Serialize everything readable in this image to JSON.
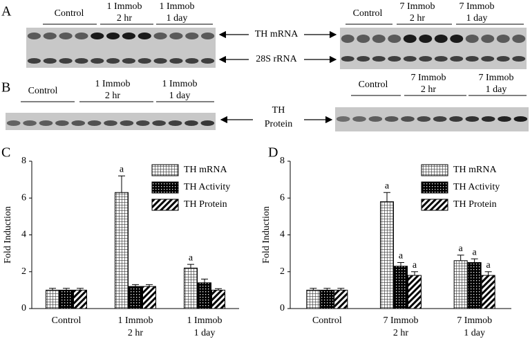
{
  "panels": [
    "A",
    "B",
    "C",
    "D"
  ],
  "blot_a": {
    "left_groups": [
      [
        "Control"
      ],
      [
        "1 Immob",
        "2 hr"
      ],
      [
        "1 Immob",
        "1 day"
      ]
    ],
    "right_groups": [
      [
        "Control"
      ],
      [
        "7 Immob",
        "2 hr"
      ],
      [
        "7 Immob",
        "1 day"
      ]
    ],
    "arrow_labels": [
      "TH mRNA",
      "28S rRNA"
    ]
  },
  "blot_b": {
    "left_groups": [
      [
        "Control"
      ],
      [
        "1 Immob",
        "2 hr"
      ],
      [
        "1 Immob",
        "1 day"
      ]
    ],
    "right_groups": [
      [
        "Control"
      ],
      [
        "7 Immob",
        "2 hr"
      ],
      [
        "7 Immob",
        "1 day"
      ]
    ],
    "arrow_label": [
      "TH",
      "Protein"
    ]
  },
  "chart_data": [
    {
      "type": "bar",
      "ylabel": "Fold Induction",
      "categories": [
        [
          "Control"
        ],
        [
          "1 Immob",
          "2 hr"
        ],
        [
          "1 Immob",
          "1 day"
        ]
      ],
      "ylim": [
        0,
        8
      ],
      "yticks": [
        0,
        2,
        4,
        6,
        8
      ],
      "legend": "upper right",
      "series": [
        {
          "name": "TH mRNA",
          "pattern": "crosshatch",
          "values": [
            1.0,
            6.3,
            2.2
          ],
          "errors": [
            0.1,
            0.9,
            0.2
          ],
          "sig_labels": [
            null,
            "a",
            "a"
          ]
        },
        {
          "name": "TH Activity",
          "pattern": "dots",
          "values": [
            1.0,
            1.2,
            1.4
          ],
          "errors": [
            0.1,
            0.1,
            0.2
          ],
          "sig_labels": [
            null,
            null,
            null
          ]
        },
        {
          "name": "TH Protein",
          "pattern": "stripes",
          "values": [
            1.0,
            1.2,
            1.0
          ],
          "errors": [
            0.1,
            0.1,
            0.08
          ],
          "sig_labels": [
            null,
            null,
            null
          ]
        }
      ]
    },
    {
      "type": "bar",
      "ylabel": "Fold Induction",
      "categories": [
        [
          "Control"
        ],
        [
          "7 Immob",
          "2 hr"
        ],
        [
          "7 Immob",
          "1 day"
        ]
      ],
      "ylim": [
        0,
        8
      ],
      "yticks": [
        0,
        2,
        4,
        6,
        8
      ],
      "legend": "upper right",
      "series": [
        {
          "name": "TH mRNA",
          "pattern": "crosshatch",
          "values": [
            1.0,
            5.8,
            2.6
          ],
          "errors": [
            0.1,
            0.5,
            0.3
          ],
          "sig_labels": [
            null,
            "a",
            "a"
          ]
        },
        {
          "name": "TH Activity",
          "pattern": "dots",
          "values": [
            1.0,
            2.3,
            2.5
          ],
          "errors": [
            0.1,
            0.2,
            0.2
          ],
          "sig_labels": [
            null,
            "a",
            "a"
          ]
        },
        {
          "name": "TH Protein",
          "pattern": "stripes",
          "values": [
            1.0,
            1.8,
            1.8
          ],
          "errors": [
            0.1,
            0.2,
            0.2
          ],
          "sig_labels": [
            null,
            "a",
            "a"
          ]
        }
      ]
    }
  ]
}
